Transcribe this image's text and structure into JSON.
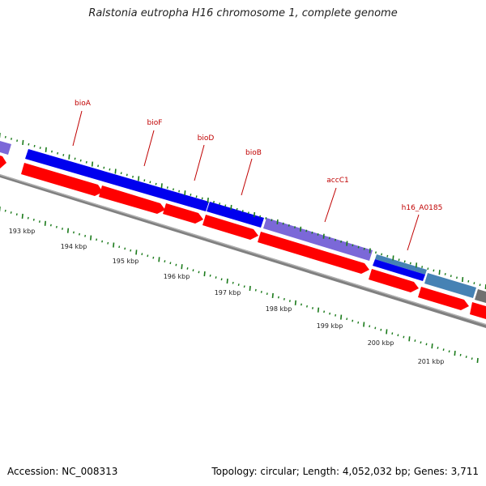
{
  "map": {
    "title": "Ralstonia eutropha H16 chromosome 1, complete genome",
    "accession": "Accession: NC_008313",
    "summary": "Topology: circular; Length: 4,052,032 bp; Genes: 3,711",
    "colors": {
      "backbone": "#808080",
      "cds": "#ff0000",
      "feature_blue": "#0000ee",
      "feature_purple": "#7b68d8",
      "feature_steel": "#4682b4",
      "feature_gray": "#707070",
      "tick": "#1a7a1a",
      "gene_label": "#c00000"
    },
    "gene_labels": [
      {
        "name": "bioA"
      },
      {
        "name": "bioF"
      },
      {
        "name": "bioD"
      },
      {
        "name": "bioB"
      },
      {
        "name": "accC1"
      },
      {
        "name": "h16_A0185"
      }
    ],
    "kbp_labels": [
      "193 kbp",
      "194 kbp",
      "195 kbp",
      "196 kbp",
      "197 kbp",
      "198 kbp",
      "199 kbp",
      "200 kbp",
      "201 kbp"
    ]
  }
}
